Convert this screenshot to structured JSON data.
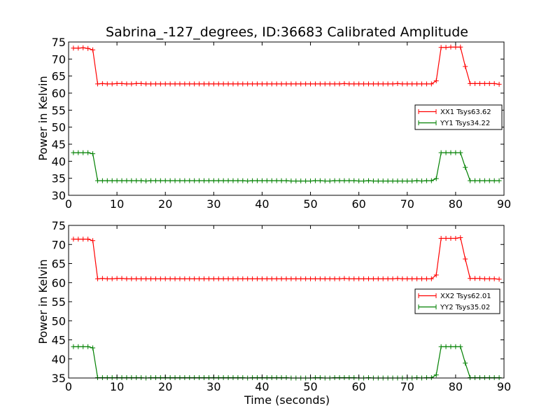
{
  "title": "Sabrina_-127_degrees, ID:36683 Calibrated Amplitude",
  "chart_data": [
    {
      "type": "line",
      "xlabel": "",
      "ylabel": "Power in Kelvin",
      "xlim": [
        0,
        90
      ],
      "ylim": [
        30,
        75
      ],
      "xticks": [
        0,
        10,
        20,
        30,
        40,
        50,
        60,
        70,
        80,
        90
      ],
      "yticks": [
        30,
        35,
        40,
        45,
        50,
        55,
        60,
        65,
        70,
        75
      ],
      "legend_position": "right",
      "grid": false,
      "series": [
        {
          "name": "XX1 Tsys63.62",
          "color": "#ff0000",
          "x": [
            1,
            2,
            3,
            4,
            5,
            6,
            7,
            8,
            9,
            10,
            11,
            12,
            13,
            14,
            15,
            16,
            17,
            18,
            19,
            20,
            21,
            22,
            23,
            24,
            25,
            26,
            27,
            28,
            29,
            30,
            31,
            32,
            33,
            34,
            35,
            36,
            37,
            38,
            39,
            40,
            41,
            42,
            43,
            44,
            45,
            46,
            47,
            48,
            49,
            50,
            51,
            52,
            53,
            54,
            55,
            56,
            57,
            58,
            59,
            60,
            61,
            62,
            63,
            64,
            65,
            66,
            67,
            68,
            69,
            70,
            71,
            72,
            73,
            74,
            75,
            76,
            77,
            78,
            79,
            80,
            81,
            82,
            83,
            84,
            85,
            86,
            87,
            88,
            89
          ],
          "y": [
            73.2,
            73.2,
            73.3,
            73.1,
            72.7,
            62.7,
            62.8,
            62.7,
            62.7,
            62.8,
            62.8,
            62.7,
            62.7,
            62.8,
            62.8,
            62.7,
            62.7,
            62.7,
            62.7,
            62.7,
            62.7,
            62.7,
            62.7,
            62.7,
            62.7,
            62.7,
            62.7,
            62.7,
            62.7,
            62.7,
            62.7,
            62.7,
            62.7,
            62.7,
            62.7,
            62.7,
            62.7,
            62.7,
            62.7,
            62.7,
            62.7,
            62.7,
            62.7,
            62.7,
            62.7,
            62.7,
            62.7,
            62.7,
            62.7,
            62.7,
            62.7,
            62.7,
            62.7,
            62.7,
            62.7,
            62.7,
            62.8,
            62.7,
            62.7,
            62.7,
            62.7,
            62.7,
            62.7,
            62.7,
            62.7,
            62.7,
            62.7,
            62.8,
            62.7,
            62.7,
            62.7,
            62.7,
            62.7,
            62.7,
            62.7,
            63.6,
            73.4,
            73.4,
            73.5,
            73.5,
            73.5,
            67.8,
            62.8,
            62.8,
            62.8,
            62.8,
            62.8,
            62.8,
            62.6
          ]
        },
        {
          "name": "YY1 Tsys34.22",
          "color": "#008000",
          "x": [
            1,
            2,
            3,
            4,
            5,
            6,
            7,
            8,
            9,
            10,
            11,
            12,
            13,
            14,
            15,
            16,
            17,
            18,
            19,
            20,
            21,
            22,
            23,
            24,
            25,
            26,
            27,
            28,
            29,
            30,
            31,
            32,
            33,
            34,
            35,
            36,
            37,
            38,
            39,
            40,
            41,
            42,
            43,
            44,
            45,
            46,
            47,
            48,
            49,
            50,
            51,
            52,
            53,
            54,
            55,
            56,
            57,
            58,
            59,
            60,
            61,
            62,
            63,
            64,
            65,
            66,
            67,
            68,
            69,
            70,
            71,
            72,
            73,
            74,
            75,
            76,
            77,
            78,
            79,
            80,
            81,
            82,
            83,
            84,
            85,
            86,
            87,
            88,
            89
          ],
          "y": [
            42.5,
            42.5,
            42.5,
            42.5,
            42.2,
            34.3,
            34.3,
            34.3,
            34.3,
            34.3,
            34.3,
            34.3,
            34.3,
            34.3,
            34.3,
            34.2,
            34.3,
            34.3,
            34.3,
            34.3,
            34.3,
            34.3,
            34.3,
            34.3,
            34.3,
            34.3,
            34.3,
            34.3,
            34.3,
            34.3,
            34.3,
            34.3,
            34.3,
            34.3,
            34.3,
            34.3,
            34.2,
            34.3,
            34.3,
            34.3,
            34.3,
            34.3,
            34.3,
            34.3,
            34.3,
            34.2,
            34.2,
            34.2,
            34.2,
            34.2,
            34.3,
            34.3,
            34.2,
            34.2,
            34.3,
            34.3,
            34.3,
            34.3,
            34.3,
            34.2,
            34.2,
            34.3,
            34.2,
            34.2,
            34.2,
            34.2,
            34.2,
            34.2,
            34.2,
            34.2,
            34.2,
            34.3,
            34.2,
            34.3,
            34.3,
            34.9,
            42.5,
            42.5,
            42.5,
            42.5,
            42.5,
            38.2,
            34.3,
            34.3,
            34.3,
            34.3,
            34.3,
            34.3,
            34.3
          ]
        }
      ]
    },
    {
      "type": "line",
      "xlabel": "Time (seconds)",
      "ylabel": "Power in Kelvin",
      "xlim": [
        0,
        90
      ],
      "ylim": [
        35,
        75
      ],
      "xticks": [
        0,
        10,
        20,
        30,
        40,
        50,
        60,
        70,
        80,
        90
      ],
      "yticks": [
        35,
        40,
        45,
        50,
        55,
        60,
        65,
        70,
        75
      ],
      "legend_position": "right",
      "grid": false,
      "series": [
        {
          "name": "XX2 Tsys62.01",
          "color": "#ff0000",
          "x": [
            1,
            2,
            3,
            4,
            5,
            6,
            7,
            8,
            9,
            10,
            11,
            12,
            13,
            14,
            15,
            16,
            17,
            18,
            19,
            20,
            21,
            22,
            23,
            24,
            25,
            26,
            27,
            28,
            29,
            30,
            31,
            32,
            33,
            34,
            35,
            36,
            37,
            38,
            39,
            40,
            41,
            42,
            43,
            44,
            45,
            46,
            47,
            48,
            49,
            50,
            51,
            52,
            53,
            54,
            55,
            56,
            57,
            58,
            59,
            60,
            61,
            62,
            63,
            64,
            65,
            66,
            67,
            68,
            69,
            70,
            71,
            72,
            73,
            74,
            75,
            76,
            77,
            78,
            79,
            80,
            81,
            82,
            83,
            84,
            85,
            86,
            87,
            88,
            89
          ],
          "y": [
            71.4,
            71.4,
            71.4,
            71.4,
            71.0,
            61.0,
            61.1,
            61.0,
            61.0,
            61.1,
            61.1,
            61.0,
            61.0,
            61.0,
            61.0,
            61.0,
            61.0,
            61.0,
            61.0,
            61.0,
            61.0,
            61.0,
            61.0,
            61.0,
            61.0,
            61.0,
            61.0,
            61.0,
            61.0,
            61.0,
            61.0,
            61.0,
            61.0,
            61.0,
            61.0,
            61.0,
            61.0,
            61.0,
            61.0,
            61.0,
            61.0,
            61.0,
            61.0,
            61.0,
            61.0,
            61.0,
            61.0,
            61.0,
            61.0,
            61.0,
            61.0,
            61.0,
            61.0,
            61.0,
            61.0,
            61.0,
            61.1,
            61.0,
            61.0,
            61.0,
            61.0,
            61.0,
            61.0,
            61.0,
            61.0,
            61.0,
            61.0,
            61.1,
            61.0,
            61.0,
            61.0,
            61.0,
            61.0,
            61.0,
            61.0,
            62.0,
            71.6,
            71.6,
            71.6,
            71.6,
            71.8,
            66.2,
            61.1,
            61.1,
            61.1,
            61.0,
            61.0,
            61.0,
            60.9
          ]
        },
        {
          "name": "YY2 Tsys35.02",
          "color": "#008000",
          "x": [
            1,
            2,
            3,
            4,
            5,
            6,
            7,
            8,
            9,
            10,
            11,
            12,
            13,
            14,
            15,
            16,
            17,
            18,
            19,
            20,
            21,
            22,
            23,
            24,
            25,
            26,
            27,
            28,
            29,
            30,
            31,
            32,
            33,
            34,
            35,
            36,
            37,
            38,
            39,
            40,
            41,
            42,
            43,
            44,
            45,
            46,
            47,
            48,
            49,
            50,
            51,
            52,
            53,
            54,
            55,
            56,
            57,
            58,
            59,
            60,
            61,
            62,
            63,
            64,
            65,
            66,
            67,
            68,
            69,
            70,
            71,
            72,
            73,
            74,
            75,
            76,
            77,
            78,
            79,
            80,
            81,
            82,
            83,
            84,
            85,
            86,
            87,
            88,
            89
          ],
          "y": [
            43.2,
            43.2,
            43.2,
            43.2,
            42.9,
            35.1,
            35.1,
            35.1,
            35.1,
            35.1,
            35.1,
            35.1,
            35.1,
            35.1,
            35.1,
            35.0,
            35.1,
            35.1,
            35.1,
            35.1,
            35.1,
            35.1,
            35.1,
            35.1,
            35.1,
            35.1,
            35.1,
            35.1,
            35.1,
            35.1,
            35.1,
            35.1,
            35.1,
            35.1,
            35.1,
            35.1,
            35.0,
            35.1,
            35.1,
            35.1,
            35.1,
            35.1,
            35.1,
            35.1,
            35.1,
            35.0,
            35.0,
            35.0,
            35.0,
            35.0,
            35.1,
            35.1,
            35.0,
            35.0,
            35.1,
            35.1,
            35.1,
            35.1,
            35.1,
            35.0,
            35.0,
            35.1,
            35.0,
            35.0,
            35.0,
            35.0,
            35.0,
            35.0,
            35.0,
            35.0,
            35.0,
            35.1,
            35.0,
            35.1,
            35.1,
            35.8,
            43.2,
            43.2,
            43.2,
            43.2,
            43.2,
            38.9,
            35.1,
            35.1,
            35.1,
            35.1,
            35.1,
            35.1,
            35.1
          ]
        }
      ]
    }
  ]
}
